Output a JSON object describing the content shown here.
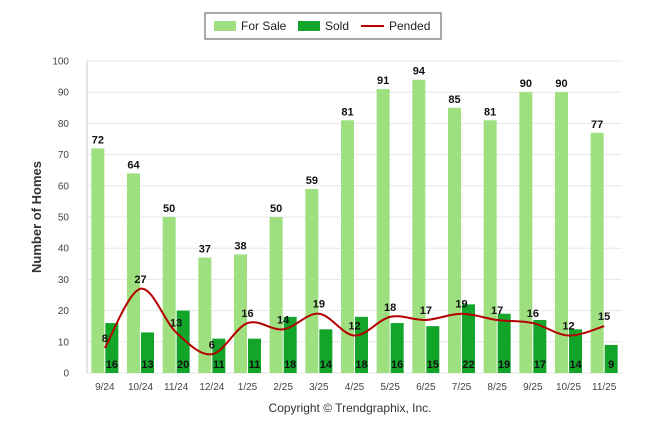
{
  "chart_data": {
    "type": "bar",
    "categories": [
      "9/24",
      "10/24",
      "11/24",
      "12/24",
      "1/25",
      "2/25",
      "3/25",
      "4/25",
      "5/25",
      "6/25",
      "7/25",
      "8/25",
      "9/25",
      "10/25",
      "11/25"
    ],
    "series": [
      {
        "name": "For Sale",
        "type": "bar",
        "color": "#9ee07f",
        "values": [
          72,
          64,
          50,
          37,
          38,
          50,
          59,
          81,
          91,
          94,
          85,
          81,
          90,
          90,
          77
        ]
      },
      {
        "name": "Sold",
        "type": "bar",
        "color": "#12a52a",
        "values": [
          16,
          13,
          20,
          11,
          11,
          18,
          14,
          18,
          16,
          15,
          22,
          19,
          17,
          14,
          9
        ]
      },
      {
        "name": "Pended",
        "type": "line",
        "color": "#b40000",
        "values": [
          8,
          27,
          13,
          6,
          16,
          14,
          19,
          12,
          18,
          17,
          19,
          17,
          16,
          12,
          15
        ]
      }
    ],
    "ylabel": "Number of Homes",
    "yticks": [
      0,
      10,
      20,
      30,
      40,
      50,
      60,
      70,
      80,
      90,
      100
    ],
    "ylim": [
      0,
      100
    ],
    "legend_position": "top-center",
    "grid": true
  },
  "footer": {
    "copyright": "Copyright © Trendgraphix, Inc."
  }
}
